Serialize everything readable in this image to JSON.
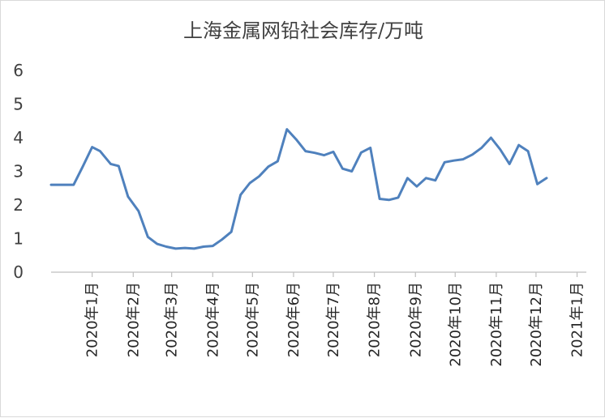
{
  "chart_data": {
    "type": "line",
    "title": "上海金属网铅社会库存/万吨",
    "xlabel": "",
    "ylabel": "",
    "ylim": [
      0,
      6
    ],
    "yticks": [
      0,
      1,
      2,
      3,
      4,
      5,
      6
    ],
    "grid": false,
    "legend": "none",
    "colors": {
      "line": "#4f81bd",
      "axis": "#bfbfbf"
    },
    "x_tick_labels": [
      {
        "label": "2020年1月",
        "t": 0
      },
      {
        "label": "2020年2月",
        "t": 31
      },
      {
        "label": "2020年3月",
        "t": 60
      },
      {
        "label": "2020年4月",
        "t": 91
      },
      {
        "label": "2020年5月",
        "t": 121
      },
      {
        "label": "2020年6月",
        "t": 152
      },
      {
        "label": "2020年7月",
        "t": 182
      },
      {
        "label": "2020年8月",
        "t": 213
      },
      {
        "label": "2020年9月",
        "t": 244
      },
      {
        "label": "2020年10月",
        "t": 274
      },
      {
        "label": "2020年11月",
        "t": 305
      },
      {
        "label": "2020年12月",
        "t": 335
      },
      {
        "label": "2021年1月",
        "t": 366
      }
    ],
    "x_range": [
      -31,
      373
    ],
    "series": [
      {
        "values": [
          [
            -31,
            2.6
          ],
          [
            -25,
            2.6
          ],
          [
            -18,
            2.6
          ],
          [
            -14,
            2.6
          ],
          [
            -7,
            3.15
          ],
          [
            0,
            3.72
          ],
          [
            6,
            3.6
          ],
          [
            14,
            3.22
          ],
          [
            20,
            3.16
          ],
          [
            27,
            2.25
          ],
          [
            35,
            1.82
          ],
          [
            42,
            1.05
          ],
          [
            49,
            0.84
          ],
          [
            56,
            0.76
          ],
          [
            63,
            0.7
          ],
          [
            70,
            0.72
          ],
          [
            77,
            0.7
          ],
          [
            84,
            0.76
          ],
          [
            91,
            0.78
          ],
          [
            98,
            0.97
          ],
          [
            105,
            1.2
          ],
          [
            112,
            2.3
          ],
          [
            119,
            2.65
          ],
          [
            126,
            2.85
          ],
          [
            133,
            3.14
          ],
          [
            140,
            3.3
          ],
          [
            147,
            4.25
          ],
          [
            154,
            3.95
          ],
          [
            161,
            3.6
          ],
          [
            168,
            3.55
          ],
          [
            175,
            3.48
          ],
          [
            182,
            3.58
          ],
          [
            189,
            3.08
          ],
          [
            196,
            3.0
          ],
          [
            203,
            3.56
          ],
          [
            210,
            3.7
          ],
          [
            217,
            2.18
          ],
          [
            224,
            2.15
          ],
          [
            231,
            2.22
          ],
          [
            238,
            2.8
          ],
          [
            245,
            2.55
          ],
          [
            252,
            2.8
          ],
          [
            259,
            2.73
          ],
          [
            266,
            3.27
          ],
          [
            273,
            3.32
          ],
          [
            280,
            3.36
          ],
          [
            287,
            3.5
          ],
          [
            294,
            3.7
          ],
          [
            301,
            4.0
          ],
          [
            308,
            3.65
          ],
          [
            315,
            3.22
          ],
          [
            322,
            3.78
          ],
          [
            329,
            3.6
          ],
          [
            336,
            2.62
          ],
          [
            343,
            2.8
          ]
        ]
      }
    ]
  }
}
